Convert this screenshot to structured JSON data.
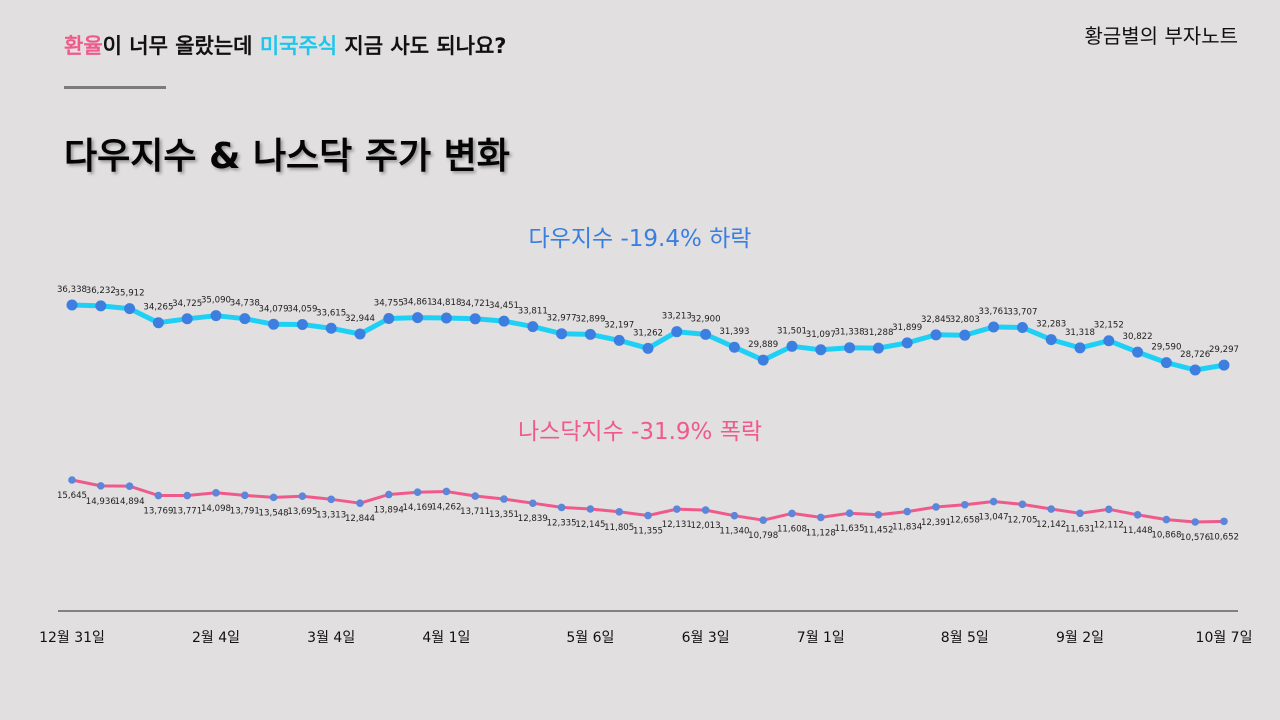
{
  "header": {
    "headline": {
      "part1": "환율",
      "part2": "이 너무 올랐는데 ",
      "part3": "미국주식",
      "part4": " 지금 사도 되나요?"
    },
    "brand": "황금별의 부자노트",
    "title": "다우지수 & 나스닥 주가 변화"
  },
  "colors": {
    "accent_pink": "#ef5a8a",
    "accent_cyan": "#1fc6ec",
    "background": "#e1dfe0"
  },
  "chart_data": {
    "type": "line",
    "title": "다우지수 & 나스닥 주가 변화",
    "x_tick_labels": [
      "12월 31일",
      "2월 4일",
      "3월 4일",
      "4월 1일",
      "5월 6일",
      "6월 3일",
      "7월 1일",
      "8월 5일",
      "9월 2일",
      "10월 7일"
    ],
    "x_tick_indices": [
      0,
      5,
      9,
      13,
      18,
      22,
      26,
      31,
      35,
      40
    ],
    "series": [
      {
        "name": "다우지수",
        "label": "다우지수 -19.4% 하락",
        "color": "#1fd0f5",
        "values": [
          36338,
          36232,
          35912,
          34265,
          34725,
          35090,
          34738,
          34079,
          34059,
          33615,
          32944,
          34755,
          34861,
          34818,
          34721,
          34451,
          33811,
          32977,
          32899,
          32197,
          31262,
          33213,
          32900,
          31393,
          29889,
          31501,
          31097,
          31338,
          31288,
          31899,
          32845,
          32803,
          33761,
          33707,
          32283,
          31318,
          32152,
          30822,
          29590,
          28726,
          29297
        ],
        "value_labels": [
          "36,338",
          "36,232",
          "35,912",
          "34,265",
          "34,725",
          "35,090",
          "34,738",
          "34,079",
          "34,059",
          "33,615",
          "32,944",
          "34,755",
          "34,861",
          "34,818",
          "34,721",
          "34,451",
          "33,811",
          "32,977",
          "32,899",
          "32,197",
          "31,262",
          "33,213",
          "32,900",
          "31,393",
          "29,889",
          "31,501",
          "31,097",
          "31,338",
          "31,288",
          "31,899",
          "32,845",
          "32,803",
          "33,761",
          "33,707",
          "32,283",
          "31,318",
          "32,152",
          "30,822",
          "29,590",
          "28,726",
          "29,297"
        ]
      },
      {
        "name": "나스닥지수",
        "label": "나스닥지수 -31.9% 폭락",
        "color": "#ef5a8a",
        "values": [
          15645,
          14936,
          14894,
          13769,
          13771,
          14098,
          13791,
          13548,
          13695,
          13313,
          12844,
          13894,
          14169,
          14262,
          13711,
          13351,
          12839,
          12335,
          12145,
          11805,
          11355,
          12131,
          12013,
          11340,
          10798,
          11608,
          11128,
          11635,
          11452,
          11834,
          12391,
          12658,
          13047,
          12705,
          12142,
          11631,
          12112,
          11448,
          10868,
          10576,
          10652
        ],
        "value_labels": [
          "15,645",
          "14,936",
          "14,894",
          "13,769",
          "13,771",
          "14,098",
          "13,791",
          "13,548",
          "13,695",
          "13,313",
          "12,844",
          "13,894",
          "14,169",
          "14,262",
          "13,711",
          "13,351",
          "12,839",
          "12,335",
          "12,145",
          "11,805",
          "11,355",
          "12,131",
          "12,013",
          "11,340",
          "10,798",
          "11,608",
          "11,128",
          "11,635",
          "11,452",
          "11,834",
          "12,391",
          "12,658",
          "13,047",
          "12,705",
          "12,142",
          "11,631",
          "12,112",
          "11,448",
          "10,868",
          "10,576",
          "10,652"
        ]
      }
    ]
  }
}
